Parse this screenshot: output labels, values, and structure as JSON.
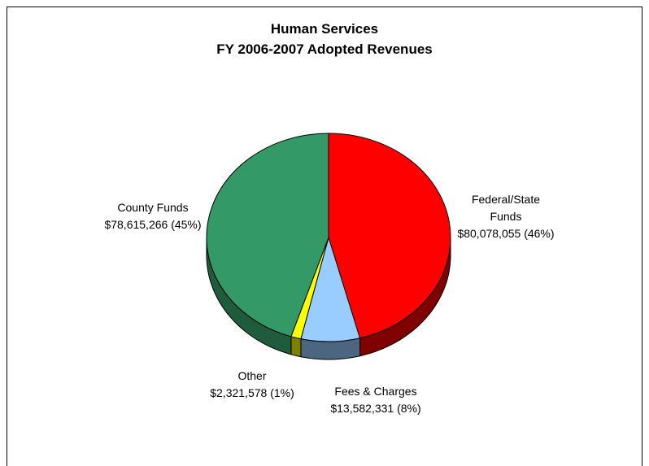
{
  "chart_data": {
    "type": "pie",
    "title": "Human Services",
    "subtitle": "FY 2006-2007 Adopted Revenues",
    "categories": [
      "Federal/State Funds",
      "Fees & Charges",
      "Other",
      "County Funds"
    ],
    "values": [
      80078055,
      13582331,
      2321578,
      78615266
    ],
    "value_labels": [
      "$80,078,055 (46%)",
      "$13,582,331 (8%)",
      "$2,321,578 (1%)",
      "$78,615,266 (45%)"
    ],
    "colors": [
      "#ff0000",
      "#99ccff",
      "#ffff00",
      "#339966"
    ],
    "side_colors": [
      "#800000",
      "#4d6680",
      "#808000",
      "#1f5c3d"
    ]
  }
}
